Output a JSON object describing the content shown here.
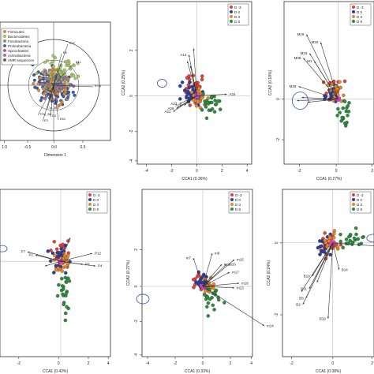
{
  "figure": {
    "panels": [
      {
        "id": "A",
        "letter": "",
        "xlabel": "Dimension 1",
        "ylabel": "",
        "x_ticks": [
          "1.0",
          "-0.5",
          "0.0",
          "0.5"
        ],
        "y_ticks": [],
        "legend": [
          "Firmicutes",
          "Bacteroidetes",
          "Fusobacteria",
          "Proteobacteria",
          "Spirochaetes",
          "Actinobacteria",
          "AMR sequences"
        ],
        "legend_colors": [
          "#e08a3a",
          "#a7c66c",
          "#8a8a8a",
          "#3b5aa8",
          "#d04a6a",
          "#9a6ac4",
          "#555555"
        ],
        "arrow_labels": [
          "E47",
          "B5",
          "E11",
          "D2",
          "1s_B47",
          "E61",
          "E3",
          "E7/y",
          "TFtu_B4"
        ]
      },
      {
        "id": "B",
        "letter": "B",
        "xlabel": "CCA1 (0.36%)",
        "ylabel": "CCA2 (0.25%)",
        "x_ticks": [
          "-4",
          "-2",
          "0",
          "2",
          "4"
        ],
        "y_ticks": [
          "2",
          "0",
          "-2",
          "-4"
        ],
        "legend": [
          "D -3",
          "D 0",
          "D 3",
          "D 8"
        ],
        "arrow_labels": [
          "A14",
          "A34",
          "A23",
          "A26",
          "A28",
          "A21"
        ]
      },
      {
        "id": "C",
        "letter": "C",
        "xlabel": "CCA1 (0.27%)",
        "ylabel": "CCA2 (0.18%)",
        "x_ticks": [
          "-2",
          "0",
          "2"
        ],
        "y_ticks": [
          "0",
          "-2"
        ],
        "legend": [
          "D -3",
          "D 0",
          "D 3",
          "D 8"
        ],
        "arrow_labels": [
          "M19",
          "M08",
          "M20",
          "M33",
          "M1",
          "M30"
        ]
      },
      {
        "id": "D",
        "letter": "",
        "xlabel": "CCA1 (0.42%)",
        "ylabel": "",
        "x_ticks": [
          "-2",
          "0",
          "2",
          "4"
        ],
        "y_ticks": [],
        "legend": [
          "D -3",
          "D 0",
          "D 3",
          "D 8"
        ],
        "arrow_labels": [
          "P12",
          "P4",
          "P1",
          "P3",
          "P7"
        ]
      },
      {
        "id": "E",
        "letter": "E",
        "xlabel": "CCA1 (0.33%)",
        "ylabel": "CCA2 (0.27%)",
        "x_ticks": [
          "-4",
          "-2",
          "0",
          "2",
          "4"
        ],
        "y_ticks": [
          "2",
          "0",
          "-2",
          "-4"
        ],
        "legend": [
          "D -3",
          "D 0",
          "D 3",
          "D 8"
        ],
        "arrow_labels": [
          "m15",
          "m16",
          "m8",
          "m17",
          "m11",
          "m7",
          "m18",
          "m13",
          "m14"
        ]
      },
      {
        "id": "F",
        "letter": "F",
        "xlabel": "CCA1 (0.38%)",
        "ylabel": "CCA2 (0.24%)",
        "x_ticks": [
          "-2",
          "0",
          "2"
        ],
        "y_ticks": [
          "0",
          "-2"
        ],
        "legend": [
          "D -3",
          "D 0",
          "D 3",
          "D 8"
        ],
        "arrow_labels": [
          "B10",
          "B11",
          "B14",
          "B8",
          "B2",
          "B19"
        ]
      }
    ],
    "group_colors": {
      "D -3": "#e0413a",
      "D 0": "#2d3f9e",
      "D 3": "#e8892e",
      "D 8": "#2e8b3e"
    }
  },
  "chart_data": [
    {
      "type": "scatter",
      "panel": "B",
      "xlabel": "CCA1 (0.36%)",
      "ylabel": "CCA2 (0.25%)",
      "xlim": [
        -4.5,
        4.5
      ],
      "ylim": [
        -4,
        3
      ],
      "legend": "top-right",
      "grid": false,
      "series": [
        {
          "name": "D -3",
          "points": [
            [
              -0.3,
              1.6
            ],
            [
              0.4,
              0.9
            ],
            [
              -1.2,
              0.5
            ],
            [
              0.8,
              -0.4
            ],
            [
              -0.6,
              2.2
            ],
            [
              1.2,
              0.3
            ]
          ]
        },
        {
          "name": "D 0",
          "points": [
            [
              -0.5,
              0.8
            ],
            [
              0.2,
              0.3
            ],
            [
              -0.9,
              -0.2
            ],
            [
              0.5,
              1.3
            ],
            [
              -1.5,
              0.1
            ],
            [
              0.0,
              -0.8
            ]
          ]
        },
        {
          "name": "D 3",
          "points": [
            [
              0.6,
              0.6
            ],
            [
              -0.2,
              1.1
            ],
            [
              1.0,
              -0.2
            ],
            [
              -0.8,
              0.4
            ],
            [
              0.3,
              -0.5
            ]
          ]
        },
        {
          "name": "D 8",
          "points": [
            [
              1.8,
              0.1
            ],
            [
              2.4,
              -0.3
            ],
            [
              1.5,
              -0.9
            ],
            [
              2.9,
              0.4
            ],
            [
              1.1,
              -1.3
            ],
            [
              0.5,
              -2.8
            ],
            [
              2.2,
              -1.8
            ]
          ]
        }
      ]
    },
    {
      "type": "scatter",
      "panel": "E",
      "xlabel": "CCA1 (0.33%)",
      "ylabel": "CCA2 (0.27%)",
      "xlim": [
        -4.5,
        4.5
      ],
      "ylim": [
        -4,
        3
      ],
      "legend": "top-right",
      "grid": false,
      "series": [
        {
          "name": "D -3",
          "points": [
            [
              0.3,
              2.9
            ],
            [
              -0.2,
              1.0
            ],
            [
              0.8,
              0.2
            ],
            [
              1.2,
              -0.8
            ],
            [
              0.5,
              -2.0
            ]
          ]
        },
        {
          "name": "D 0",
          "points": [
            [
              -0.4,
              0.3
            ],
            [
              0.2,
              -0.4
            ],
            [
              0.9,
              -1.2
            ],
            [
              -0.1,
              0.9
            ]
          ]
        },
        {
          "name": "D 3",
          "points": [
            [
              0.7,
              -0.3
            ],
            [
              1.4,
              -1.5
            ],
            [
              0.3,
              0.6
            ],
            [
              2.0,
              -1.9
            ]
          ]
        },
        {
          "name": "D 8",
          "points": [
            [
              1.0,
              -1.0
            ],
            [
              2.5,
              -2.4
            ],
            [
              -0.5,
              -2.6
            ],
            [
              1.8,
              -3.1
            ]
          ]
        }
      ]
    }
  ]
}
